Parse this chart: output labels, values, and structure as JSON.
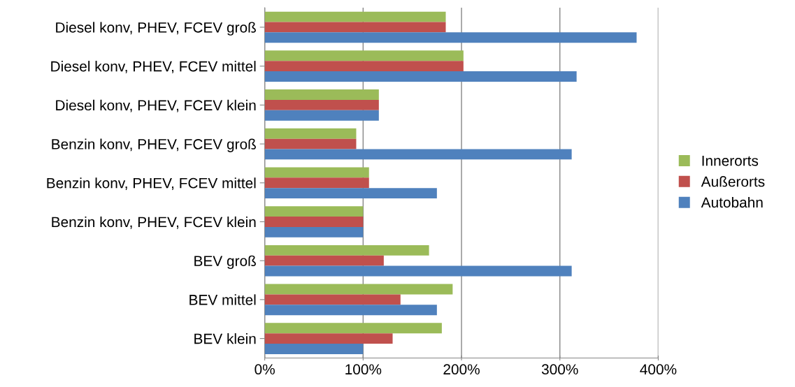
{
  "chart_data": {
    "type": "bar",
    "orientation": "horizontal",
    "categories": [
      "Diesel konv, PHEV, FCEV groß",
      "Diesel konv, PHEV, FCEV mittel",
      "Diesel konv, PHEV, FCEV klein",
      "Benzin konv, PHEV, FCEV groß",
      "Benzin konv, PHEV, FCEV mittel",
      "Benzin konv, PHEV, FCEV klein",
      "BEV groß",
      "BEV mittel",
      "BEV klein"
    ],
    "series": [
      {
        "name": "Innerorts",
        "color": "#9bbb59",
        "values": [
          184,
          202,
          116,
          93,
          106,
          100,
          167,
          191,
          180
        ]
      },
      {
        "name": "Außerorts",
        "color": "#c0504d",
        "values": [
          184,
          202,
          116,
          93,
          106,
          100,
          121,
          138,
          130
        ]
      },
      {
        "name": "Autobahn",
        "color": "#4f81bd",
        "values": [
          378,
          317,
          116,
          312,
          175,
          100,
          312,
          175,
          100
        ]
      }
    ],
    "xlim": [
      0,
      400
    ],
    "xticks": [
      {
        "value": 0,
        "label": "0%"
      },
      {
        "value": 100,
        "label": "100%"
      },
      {
        "value": 200,
        "label": "200%"
      },
      {
        "value": 300,
        "label": "300%"
      },
      {
        "value": 400,
        "label": "400%"
      }
    ],
    "grid": "x",
    "legend": "right"
  }
}
